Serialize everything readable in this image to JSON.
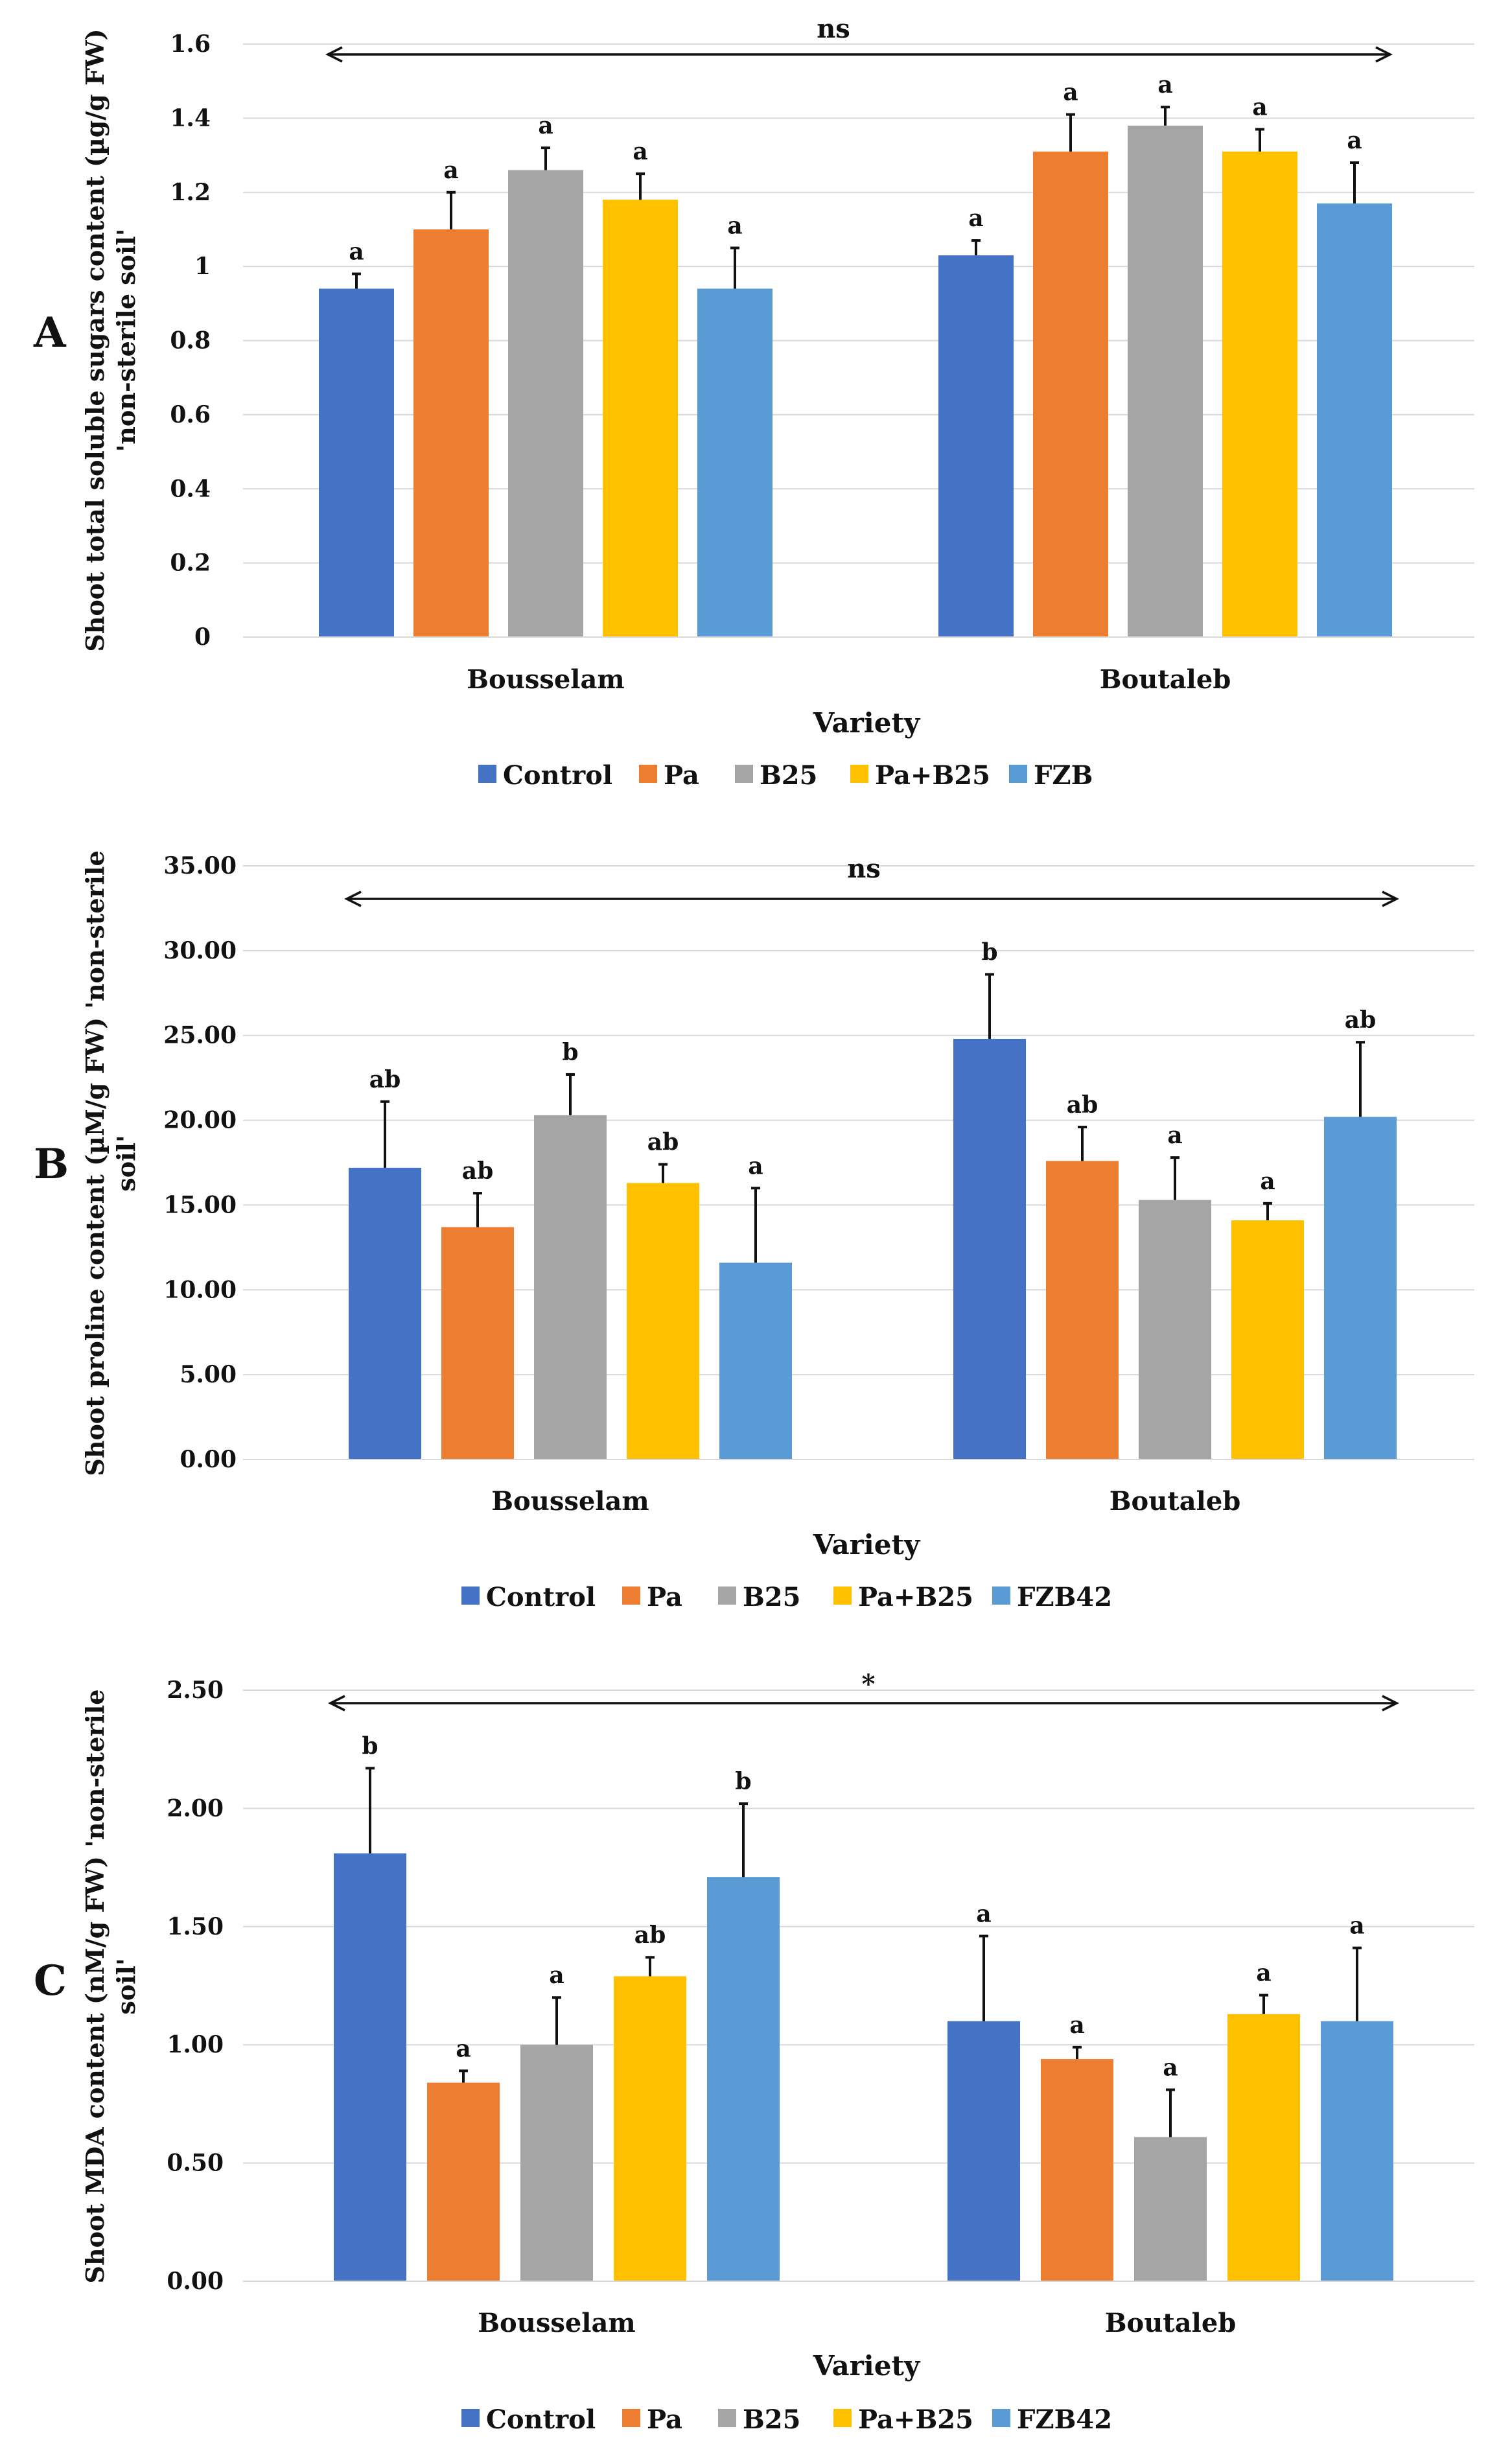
{
  "chart_data": [
    {
      "id": "A",
      "type": "bar",
      "panel_label": "A",
      "title": "",
      "xlabel": "Variety",
      "ylabel": [
        "Shoot total soluble sugars content (µg/g FW)",
        "'non-sterile soil'"
      ],
      "ylim": [
        0,
        1.6
      ],
      "y_ticks": [
        "0",
        "0.2",
        "0.4",
        "0.6",
        "0.8",
        "1",
        "1.2",
        "1.4",
        "1.6"
      ],
      "grid": true,
      "legend_position": "bottom",
      "categories": [
        "Bousselam",
        "Boutaleb"
      ],
      "overall_significance": "ns",
      "series": [
        {
          "name": "Control",
          "color": "#4472c4",
          "values": [
            0.94,
            1.03
          ],
          "errors": [
            0.04,
            0.04
          ],
          "letters": [
            "a",
            "a"
          ]
        },
        {
          "name": "Pa",
          "color": "#ed7d31",
          "values": [
            1.1,
            1.31
          ],
          "errors": [
            0.1,
            0.1
          ],
          "letters": [
            "a",
            "a"
          ]
        },
        {
          "name": "B25",
          "color": "#a5a5a5",
          "values": [
            1.26,
            1.38
          ],
          "errors": [
            0.06,
            0.05
          ],
          "letters": [
            "a",
            "a"
          ]
        },
        {
          "name": "Pa+B25",
          "color": "#ffc000",
          "values": [
            1.18,
            1.31
          ],
          "errors": [
            0.07,
            0.06
          ],
          "letters": [
            "a",
            "a"
          ]
        },
        {
          "name": "FZB",
          "color": "#5b9bd5",
          "values": [
            0.94,
            1.17
          ],
          "errors": [
            0.11,
            0.11
          ],
          "letters": [
            "a",
            "a"
          ]
        }
      ]
    },
    {
      "id": "B",
      "type": "bar",
      "panel_label": "B",
      "title": "",
      "xlabel": "Variety",
      "ylabel": [
        "Shoot proline content (µM/g FW) 'non-sterile",
        "soil'"
      ],
      "ylim": [
        0,
        35
      ],
      "y_ticks": [
        "0.00",
        "5.00",
        "10.00",
        "15.00",
        "20.00",
        "25.00",
        "30.00",
        "35.00"
      ],
      "grid": true,
      "legend_position": "bottom",
      "categories": [
        "Bousselam",
        "Boutaleb"
      ],
      "overall_significance": "ns",
      "series": [
        {
          "name": "Control",
          "color": "#4472c4",
          "values": [
            17.2,
            24.8
          ],
          "errors": [
            3.9,
            3.8
          ],
          "letters": [
            "ab",
            "b"
          ]
        },
        {
          "name": "Pa",
          "color": "#ed7d31",
          "values": [
            13.7,
            17.6
          ],
          "errors": [
            2.0,
            2.0
          ],
          "letters": [
            "ab",
            "ab"
          ]
        },
        {
          "name": "B25",
          "color": "#a5a5a5",
          "values": [
            20.3,
            15.3
          ],
          "errors": [
            2.4,
            2.5
          ],
          "letters": [
            "b",
            "a"
          ]
        },
        {
          "name": "Pa+B25",
          "color": "#ffc000",
          "values": [
            16.3,
            14.1
          ],
          "errors": [
            1.1,
            1.0
          ],
          "letters": [
            "ab",
            "a"
          ]
        },
        {
          "name": "FZB42",
          "color": "#5b9bd5",
          "values": [
            11.6,
            20.2
          ],
          "errors": [
            4.4,
            4.4
          ],
          "letters": [
            "a",
            "ab"
          ]
        }
      ]
    },
    {
      "id": "C",
      "type": "bar",
      "panel_label": "C",
      "title": "",
      "xlabel": "Variety",
      "ylabel": [
        "Shoot MDA content (nM/g FW) 'non-sterile",
        "soil'"
      ],
      "ylim": [
        0,
        2.5
      ],
      "y_ticks": [
        "0.00",
        "0.50",
        "1.00",
        "1.50",
        "2.00",
        "2.50"
      ],
      "grid": true,
      "legend_position": "bottom",
      "categories": [
        "Bousselam",
        "Boutaleb"
      ],
      "overall_significance": "*",
      "series": [
        {
          "name": "Control",
          "color": "#4472c4",
          "values": [
            1.81,
            1.1
          ],
          "errors": [
            0.36,
            0.36
          ],
          "letters": [
            "b",
            "a"
          ]
        },
        {
          "name": "Pa",
          "color": "#ed7d31",
          "values": [
            0.84,
            0.94
          ],
          "errors": [
            0.05,
            0.05
          ],
          "letters": [
            "a",
            "a"
          ]
        },
        {
          "name": "B25",
          "color": "#a5a5a5",
          "values": [
            1.0,
            0.61
          ],
          "errors": [
            0.2,
            0.2
          ],
          "letters": [
            "a",
            "a"
          ]
        },
        {
          "name": "Pa+B25",
          "color": "#ffc000",
          "values": [
            1.29,
            1.13
          ],
          "errors": [
            0.08,
            0.08
          ],
          "letters": [
            "ab",
            "a"
          ]
        },
        {
          "name": "FZB42",
          "color": "#5b9bd5",
          "values": [
            1.71,
            1.1
          ],
          "errors": [
            0.31,
            0.31
          ],
          "letters": [
            "b",
            "a"
          ]
        }
      ]
    }
  ]
}
